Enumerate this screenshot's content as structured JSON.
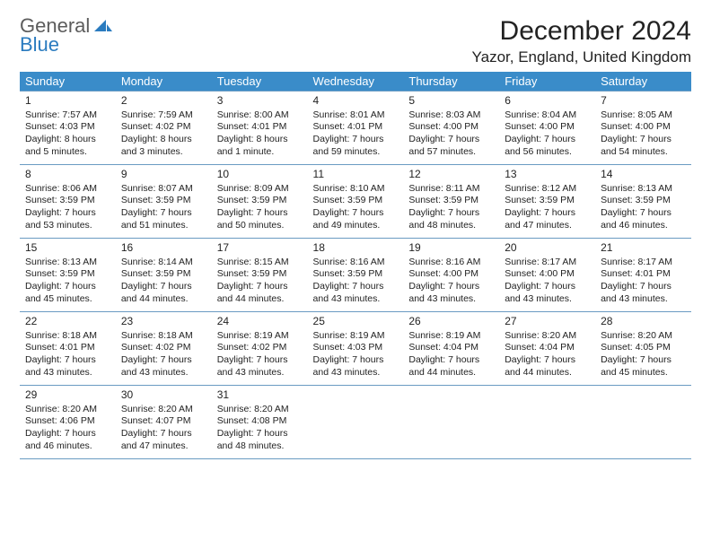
{
  "brand": {
    "general": "General",
    "blue": "Blue"
  },
  "header": {
    "title": "December 2024",
    "location": "Yazor, England, United Kingdom"
  },
  "colors": {
    "header_bg": "#3a8cc9",
    "header_text": "#ffffff",
    "cell_border": "#6a9bc2",
    "empty_bg": "#f1f1f1",
    "text": "#222222",
    "logo_gray": "#5c5c5c",
    "logo_blue": "#2a7bbf"
  },
  "weekday_labels": [
    "Sunday",
    "Monday",
    "Tuesday",
    "Wednesday",
    "Thursday",
    "Friday",
    "Saturday"
  ],
  "days": [
    {
      "n": 1,
      "sunrise": "7:57 AM",
      "sunset": "4:03 PM",
      "daylight": "8 hours and 5 minutes."
    },
    {
      "n": 2,
      "sunrise": "7:59 AM",
      "sunset": "4:02 PM",
      "daylight": "8 hours and 3 minutes."
    },
    {
      "n": 3,
      "sunrise": "8:00 AM",
      "sunset": "4:01 PM",
      "daylight": "8 hours and 1 minute."
    },
    {
      "n": 4,
      "sunrise": "8:01 AM",
      "sunset": "4:01 PM",
      "daylight": "7 hours and 59 minutes."
    },
    {
      "n": 5,
      "sunrise": "8:03 AM",
      "sunset": "4:00 PM",
      "daylight": "7 hours and 57 minutes."
    },
    {
      "n": 6,
      "sunrise": "8:04 AM",
      "sunset": "4:00 PM",
      "daylight": "7 hours and 56 minutes."
    },
    {
      "n": 7,
      "sunrise": "8:05 AM",
      "sunset": "4:00 PM",
      "daylight": "7 hours and 54 minutes."
    },
    {
      "n": 8,
      "sunrise": "8:06 AM",
      "sunset": "3:59 PM",
      "daylight": "7 hours and 53 minutes."
    },
    {
      "n": 9,
      "sunrise": "8:07 AM",
      "sunset": "3:59 PM",
      "daylight": "7 hours and 51 minutes."
    },
    {
      "n": 10,
      "sunrise": "8:09 AM",
      "sunset": "3:59 PM",
      "daylight": "7 hours and 50 minutes."
    },
    {
      "n": 11,
      "sunrise": "8:10 AM",
      "sunset": "3:59 PM",
      "daylight": "7 hours and 49 minutes."
    },
    {
      "n": 12,
      "sunrise": "8:11 AM",
      "sunset": "3:59 PM",
      "daylight": "7 hours and 48 minutes."
    },
    {
      "n": 13,
      "sunrise": "8:12 AM",
      "sunset": "3:59 PM",
      "daylight": "7 hours and 47 minutes."
    },
    {
      "n": 14,
      "sunrise": "8:13 AM",
      "sunset": "3:59 PM",
      "daylight": "7 hours and 46 minutes."
    },
    {
      "n": 15,
      "sunrise": "8:13 AM",
      "sunset": "3:59 PM",
      "daylight": "7 hours and 45 minutes."
    },
    {
      "n": 16,
      "sunrise": "8:14 AM",
      "sunset": "3:59 PM",
      "daylight": "7 hours and 44 minutes."
    },
    {
      "n": 17,
      "sunrise": "8:15 AM",
      "sunset": "3:59 PM",
      "daylight": "7 hours and 44 minutes."
    },
    {
      "n": 18,
      "sunrise": "8:16 AM",
      "sunset": "3:59 PM",
      "daylight": "7 hours and 43 minutes."
    },
    {
      "n": 19,
      "sunrise": "8:16 AM",
      "sunset": "4:00 PM",
      "daylight": "7 hours and 43 minutes."
    },
    {
      "n": 20,
      "sunrise": "8:17 AM",
      "sunset": "4:00 PM",
      "daylight": "7 hours and 43 minutes."
    },
    {
      "n": 21,
      "sunrise": "8:17 AM",
      "sunset": "4:01 PM",
      "daylight": "7 hours and 43 minutes."
    },
    {
      "n": 22,
      "sunrise": "8:18 AM",
      "sunset": "4:01 PM",
      "daylight": "7 hours and 43 minutes."
    },
    {
      "n": 23,
      "sunrise": "8:18 AM",
      "sunset": "4:02 PM",
      "daylight": "7 hours and 43 minutes."
    },
    {
      "n": 24,
      "sunrise": "8:19 AM",
      "sunset": "4:02 PM",
      "daylight": "7 hours and 43 minutes."
    },
    {
      "n": 25,
      "sunrise": "8:19 AM",
      "sunset": "4:03 PM",
      "daylight": "7 hours and 43 minutes."
    },
    {
      "n": 26,
      "sunrise": "8:19 AM",
      "sunset": "4:04 PM",
      "daylight": "7 hours and 44 minutes."
    },
    {
      "n": 27,
      "sunrise": "8:20 AM",
      "sunset": "4:04 PM",
      "daylight": "7 hours and 44 minutes."
    },
    {
      "n": 28,
      "sunrise": "8:20 AM",
      "sunset": "4:05 PM",
      "daylight": "7 hours and 45 minutes."
    },
    {
      "n": 29,
      "sunrise": "8:20 AM",
      "sunset": "4:06 PM",
      "daylight": "7 hours and 46 minutes."
    },
    {
      "n": 30,
      "sunrise": "8:20 AM",
      "sunset": "4:07 PM",
      "daylight": "7 hours and 47 minutes."
    },
    {
      "n": 31,
      "sunrise": "8:20 AM",
      "sunset": "4:08 PM",
      "daylight": "7 hours and 48 minutes."
    }
  ],
  "layout": {
    "first_weekday": 0,
    "weeks": 5,
    "trailing_empty": 4,
    "labels": {
      "sunrise_prefix": "Sunrise: ",
      "sunset_prefix": "Sunset: ",
      "daylight_prefix": "Daylight: "
    }
  }
}
